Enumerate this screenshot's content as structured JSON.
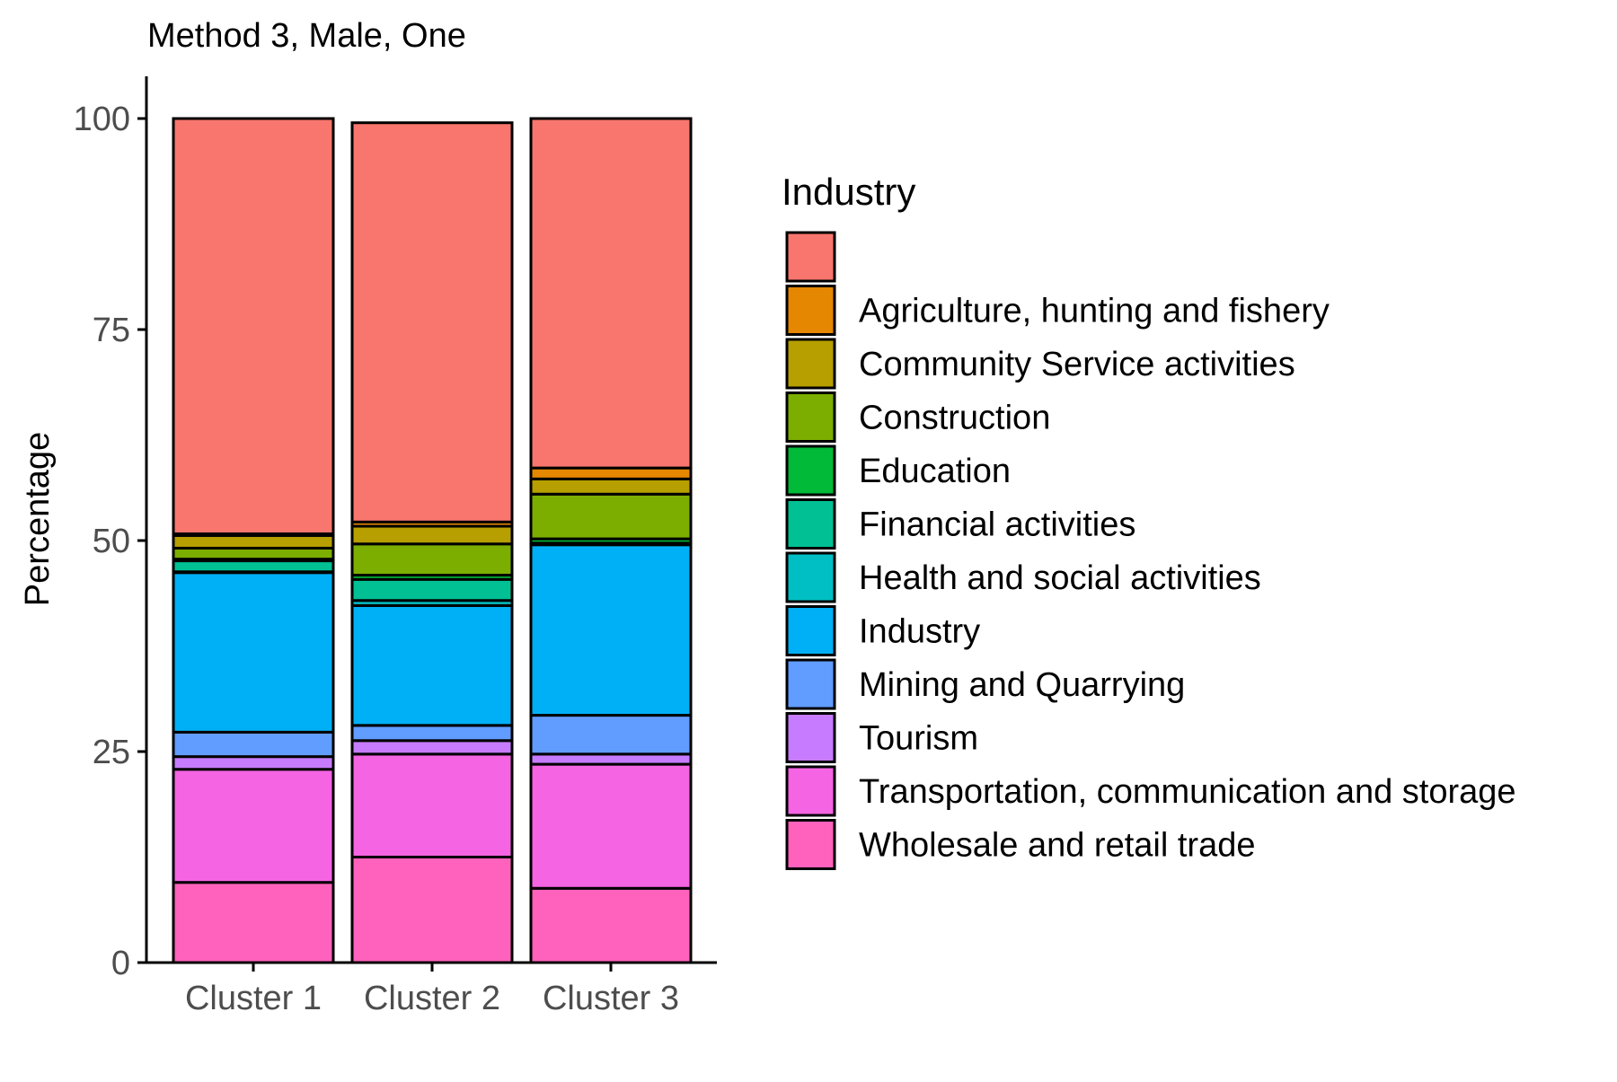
{
  "chart_data": {
    "type": "bar",
    "stacked": true,
    "title": "Method 3, Male, One",
    "xlabel": "",
    "ylabel": "Percentage",
    "ylim": [
      0,
      105
    ],
    "y_ticks": [
      0,
      25,
      50,
      75,
      100
    ],
    "y_tick_labels": [
      "0",
      "25",
      "50",
      "75",
      "100"
    ],
    "grid": false,
    "legend_title": "Industry",
    "legend_position": "right",
    "categories": [
      "Cluster 1",
      "Cluster 2",
      "Cluster 3"
    ],
    "series": [
      {
        "name": "Wholesale and retail trade",
        "color": "#FF62BC",
        "values": [
          9.5,
          12.5,
          8.8
        ]
      },
      {
        "name": "Transportation, communication and storage",
        "color": "#F564E3",
        "values": [
          13.4,
          12.2,
          14.7
        ]
      },
      {
        "name": "Tourism",
        "color": "#C77CFF",
        "values": [
          1.5,
          1.6,
          1.2
        ]
      },
      {
        "name": "Mining and Quarrying",
        "color": "#619CFF",
        "values": [
          2.9,
          1.8,
          4.6
        ]
      },
      {
        "name": "Industry",
        "color": "#00B0F6",
        "values": [
          18.9,
          14.2,
          20.2
        ]
      },
      {
        "name": "Health and social activities",
        "color": "#00BFC4",
        "values": [
          0.1,
          0.6,
          0.1
        ]
      },
      {
        "name": "Financial activities",
        "color": "#00C094",
        "values": [
          1.3,
          2.5,
          0.1
        ]
      },
      {
        "name": "Education",
        "color": "#00BA38",
        "values": [
          0.2,
          0.5,
          0.5
        ]
      },
      {
        "name": "Construction",
        "color": "#7CAE00",
        "values": [
          1.3,
          3.7,
          5.3
        ]
      },
      {
        "name": "Community Service activities",
        "color": "#B79F00",
        "values": [
          1.5,
          2.1,
          1.8
        ]
      },
      {
        "name": "Agriculture, hunting and fishery",
        "color": "#E58700",
        "values": [
          0.2,
          0.5,
          1.3
        ]
      },
      {
        "name": "",
        "color": "#F8766D",
        "values": [
          49.2,
          47.3,
          41.4
        ]
      }
    ],
    "legend_order": [
      "",
      "Agriculture, hunting and fishery",
      "Community Service activities",
      "Construction",
      "Education",
      "Financial activities",
      "Health and social activities",
      "Industry",
      "Mining and Quarrying",
      "Tourism",
      "Transportation, communication and storage",
      "Wholesale and retail trade"
    ]
  }
}
